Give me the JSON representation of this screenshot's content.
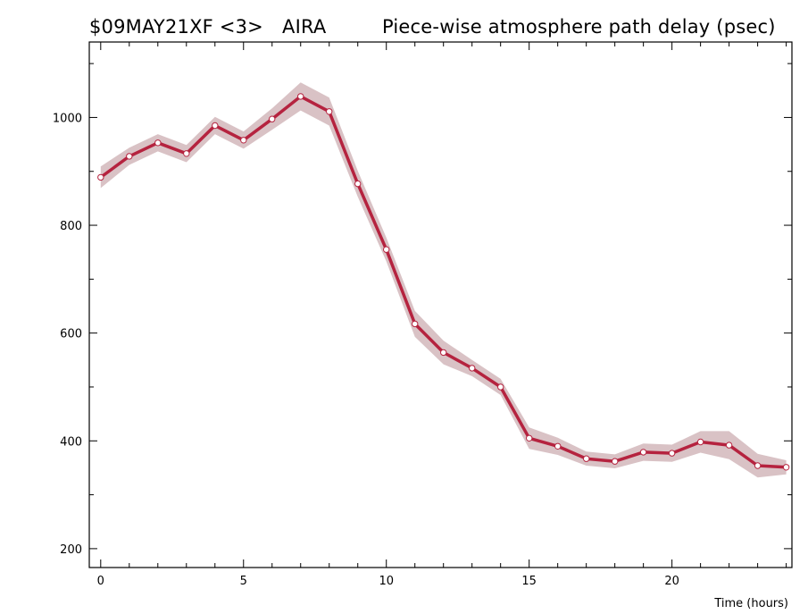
{
  "header": {
    "experiment": "$09MAY21XF <3>",
    "station": "AIRA",
    "title": "Piece-wise atmosphere path delay (psec)"
  },
  "chart_data": {
    "type": "line",
    "title": "Piece-wise atmosphere path delay (psec)",
    "xlabel": "Time (hours)",
    "ylabel": "",
    "xlim": [
      -0.4,
      24.2
    ],
    "ylim": [
      165,
      1140
    ],
    "xticks": [
      0,
      5,
      10,
      15,
      20
    ],
    "yticks": [
      200,
      400,
      600,
      800,
      1000
    ],
    "grid": false,
    "legend": "none",
    "colors": {
      "line": "#b5233f",
      "band": "#d9c2c5",
      "marker_fill": "#ffffff"
    },
    "series": [
      {
        "x": [
          0,
          1,
          2,
          3,
          4,
          5,
          6,
          7,
          8,
          9,
          10,
          11,
          12,
          13,
          14,
          15,
          16,
          17,
          18,
          19,
          20,
          21,
          22,
          23,
          24
        ],
        "y": [
          889,
          928,
          953,
          933,
          985,
          958,
          997,
          1039,
          1011,
          877,
          755,
          617,
          564,
          535,
          500,
          405,
          390,
          367,
          362,
          379,
          377,
          398,
          392,
          354,
          351
        ],
        "uncertainty": [
          20,
          16,
          16,
          16,
          16,
          16,
          20,
          26,
          26,
          24,
          22,
          24,
          22,
          15,
          15,
          20,
          16,
          13,
          13,
          16,
          16,
          20,
          26,
          22,
          13
        ]
      }
    ]
  }
}
